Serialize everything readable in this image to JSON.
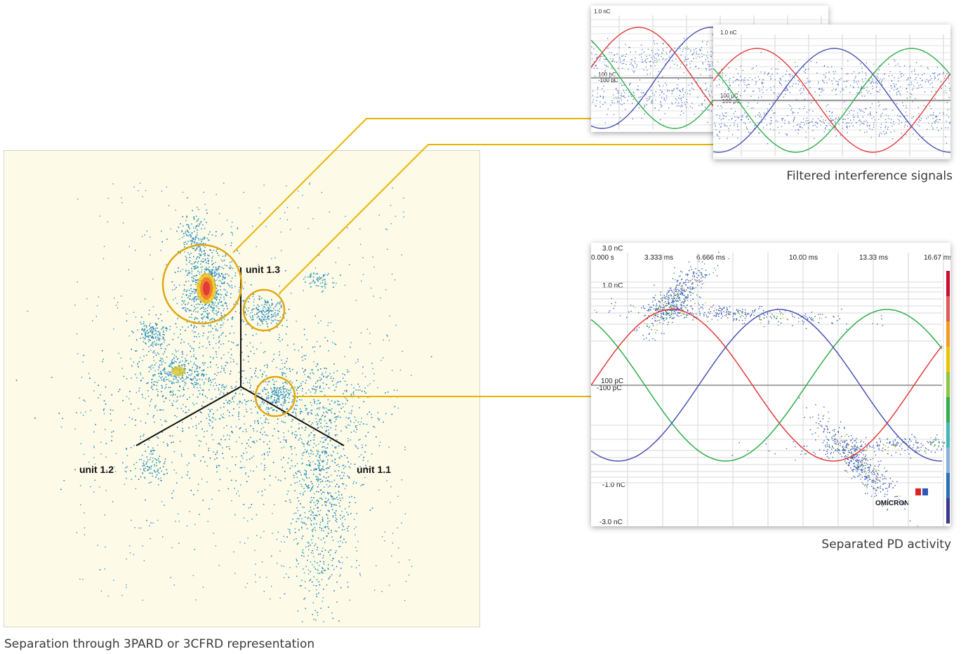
{
  "scatter3d": {
    "label_1": "unit 1.1",
    "label_2": "unit 1.2",
    "label_3": "unit 1.3",
    "caption": "Separation through 3PARD or 3CFRD representation"
  },
  "interference": {
    "caption": "Filtered interference signals",
    "back": {
      "y_top": "1.0 nC",
      "y_mid1": "100 pC",
      "y_mid2": "-100 pC"
    },
    "front": {
      "y_top": "1.0 nC",
      "y_mid1": "100 pC",
      "y_mid2": "-100 pC"
    }
  },
  "pd": {
    "caption": "Separated PD activity",
    "y_top": "3.0 nC",
    "y_1": "1.0 nC",
    "y_100p": "100 pC",
    "y_m100p": "-100 pC",
    "y_m1": "-1.0 nC",
    "y_m3": "-3.0 nC",
    "x_ticks": [
      "0.000 s",
      "3.333 ms",
      "6.666 ms",
      "10.00 ms",
      "13.33 ms",
      "16.67 ms"
    ],
    "logo": "OMICRON"
  },
  "colors": {
    "phase_red": "#e23a3a",
    "phase_green": "#2fae4a",
    "phase_blue": "#4a54b0",
    "accent_gold": "#e8b400",
    "panel_bg": "#fdfbe8"
  }
}
